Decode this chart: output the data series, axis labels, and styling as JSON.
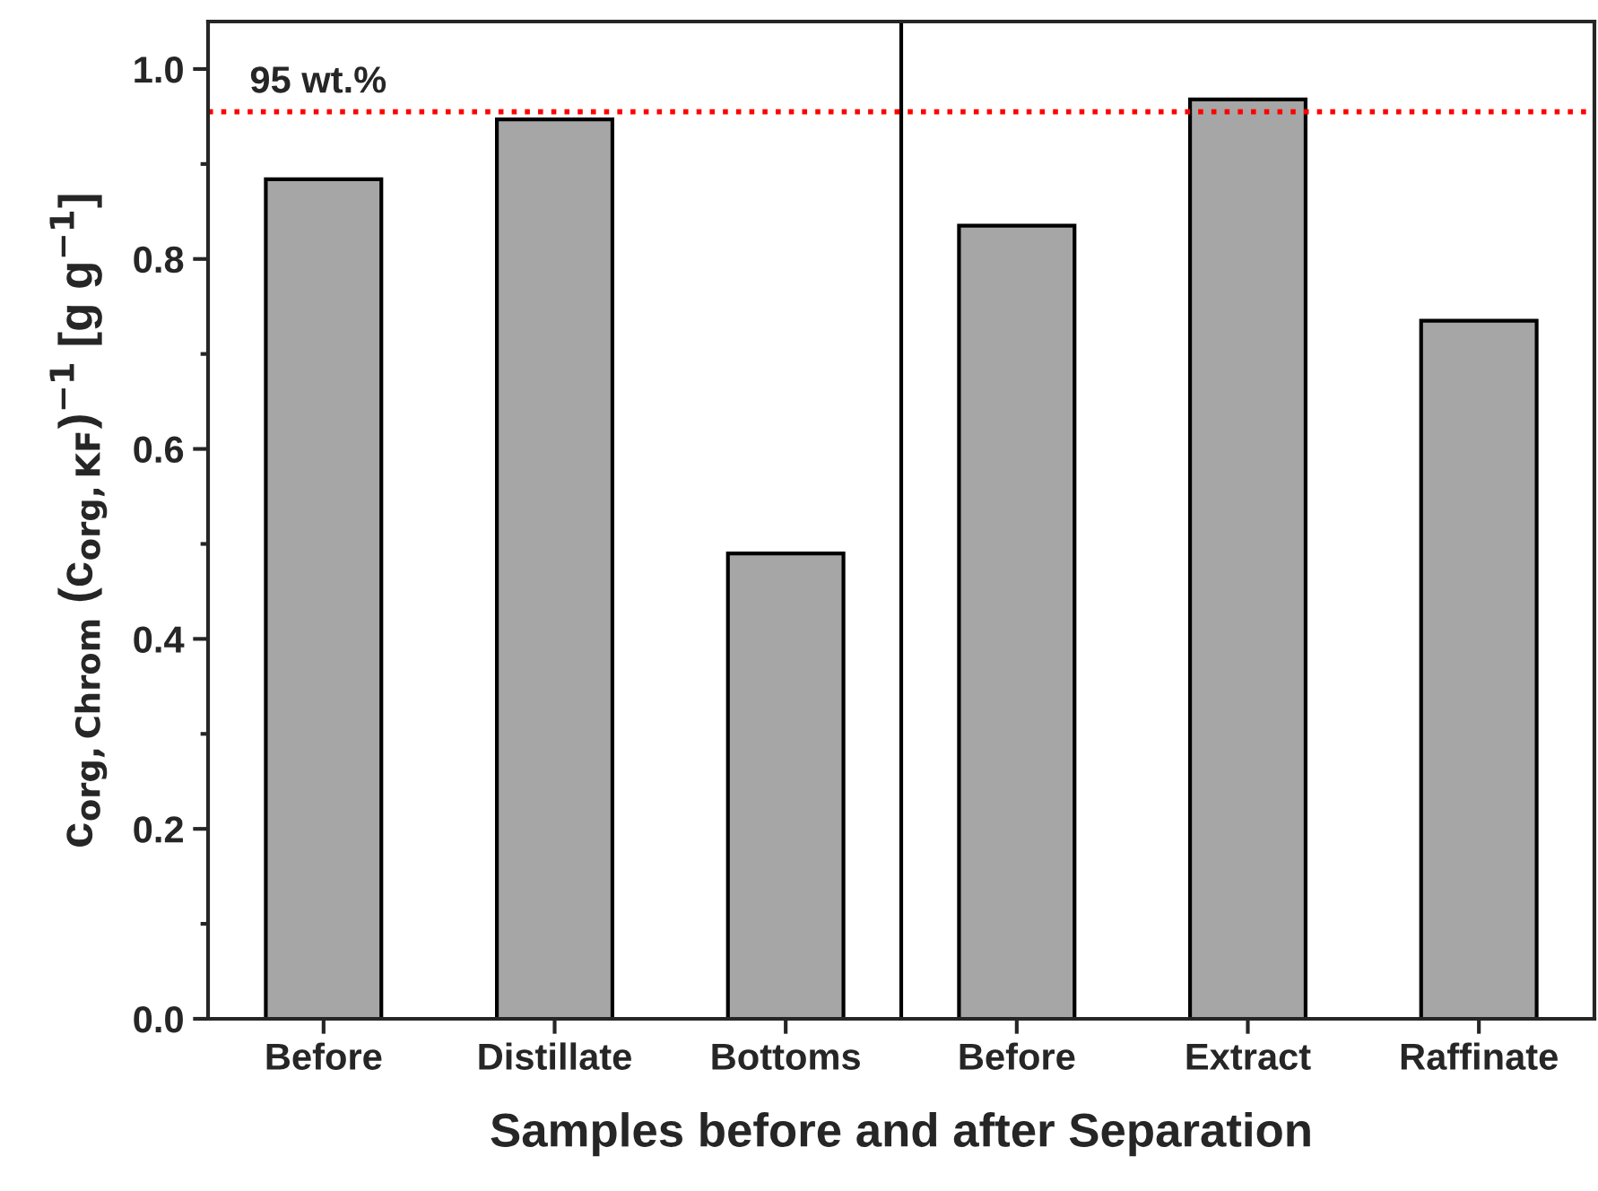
{
  "chart_data": {
    "type": "bar",
    "xlabel": "Samples before and after Separation",
    "ylabel": "c$_{org,Chrom}$ (c$_{org,KF}$)$^{−1}$ [g g$^{−1}$]",
    "categories": [
      "Before",
      "Distillate",
      "Bottoms",
      "Before",
      "Extract",
      "Raffinate"
    ],
    "values": [
      0.884,
      0.947,
      0.49,
      0.835,
      0.968,
      0.735
    ],
    "color": "#a6a6a6",
    "ylim": [
      0,
      1.05
    ],
    "yticks": [
      {
        "value": 0,
        "label": "0.0"
      },
      0.2,
      0.4,
      0.6,
      0.8,
      {
        "value": 1,
        "label": "1.0"
      }
    ],
    "ref_lines": [
      {
        "axis": "y",
        "value": 0.955,
        "label": "95 wt.%",
        "color": "#ff0000",
        "line_style": "dotted"
      }
    ],
    "grid": false,
    "legend": false
  }
}
